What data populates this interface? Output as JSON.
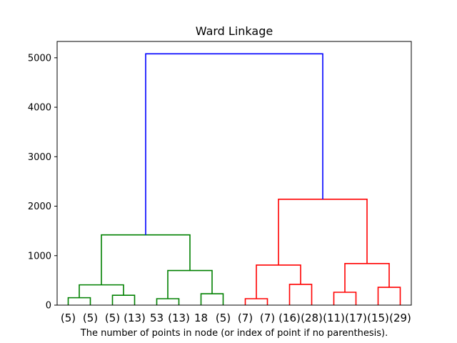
{
  "chart_data": {
    "type": "dendrogram",
    "title": "Ward Linkage",
    "xlabel": "The number of points in node (or index of point if no parenthesis).",
    "ylabel": "",
    "ylim": [
      0,
      5330
    ],
    "yticks": [
      0,
      1000,
      2000,
      3000,
      4000,
      5000
    ],
    "ytick_labels": [
      "0",
      "1000",
      "2000",
      "3000",
      "4000",
      "5000"
    ],
    "leaf_labels": [
      "(5)",
      "(5)",
      "(5)",
      "(13)",
      "53",
      "(13)",
      "18",
      "(5)",
      "(7)",
      "(7)",
      "(16)",
      "(28)",
      "(11)",
      "(17)",
      "(15)",
      "(29)"
    ],
    "merges": [
      {
        "left": "L0",
        "right": "L1",
        "height": 150,
        "color": "#008000"
      },
      {
        "left": "L2",
        "right": "L3",
        "height": 200,
        "color": "#008000"
      },
      {
        "left": "L4",
        "right": "L5",
        "height": 130,
        "color": "#008000"
      },
      {
        "left": "L6",
        "right": "L7",
        "height": 230,
        "color": "#008000"
      },
      {
        "left": "L8",
        "right": "L9",
        "height": 130,
        "color": "#ff0000"
      },
      {
        "left": "L10",
        "right": "L11",
        "height": 420,
        "color": "#ff0000"
      },
      {
        "left": "L12",
        "right": "L13",
        "height": 260,
        "color": "#ff0000"
      },
      {
        "left": "L14",
        "right": "L15",
        "height": 360,
        "color": "#ff0000"
      },
      {
        "left": "M0",
        "right": "M1",
        "height": 410,
        "color": "#008000"
      },
      {
        "left": "M2",
        "right": "M3",
        "height": 700,
        "color": "#008000"
      },
      {
        "left": "M4",
        "right": "M5",
        "height": 810,
        "color": "#ff0000"
      },
      {
        "left": "M6",
        "right": "M7",
        "height": 840,
        "color": "#ff0000"
      },
      {
        "left": "M8",
        "right": "M9",
        "height": 1420,
        "color": "#008000"
      },
      {
        "left": "M10",
        "right": "M11",
        "height": 2140,
        "color": "#ff0000"
      },
      {
        "left": "M12",
        "right": "M13",
        "height": 5080,
        "color": "#0000ff"
      }
    ]
  }
}
